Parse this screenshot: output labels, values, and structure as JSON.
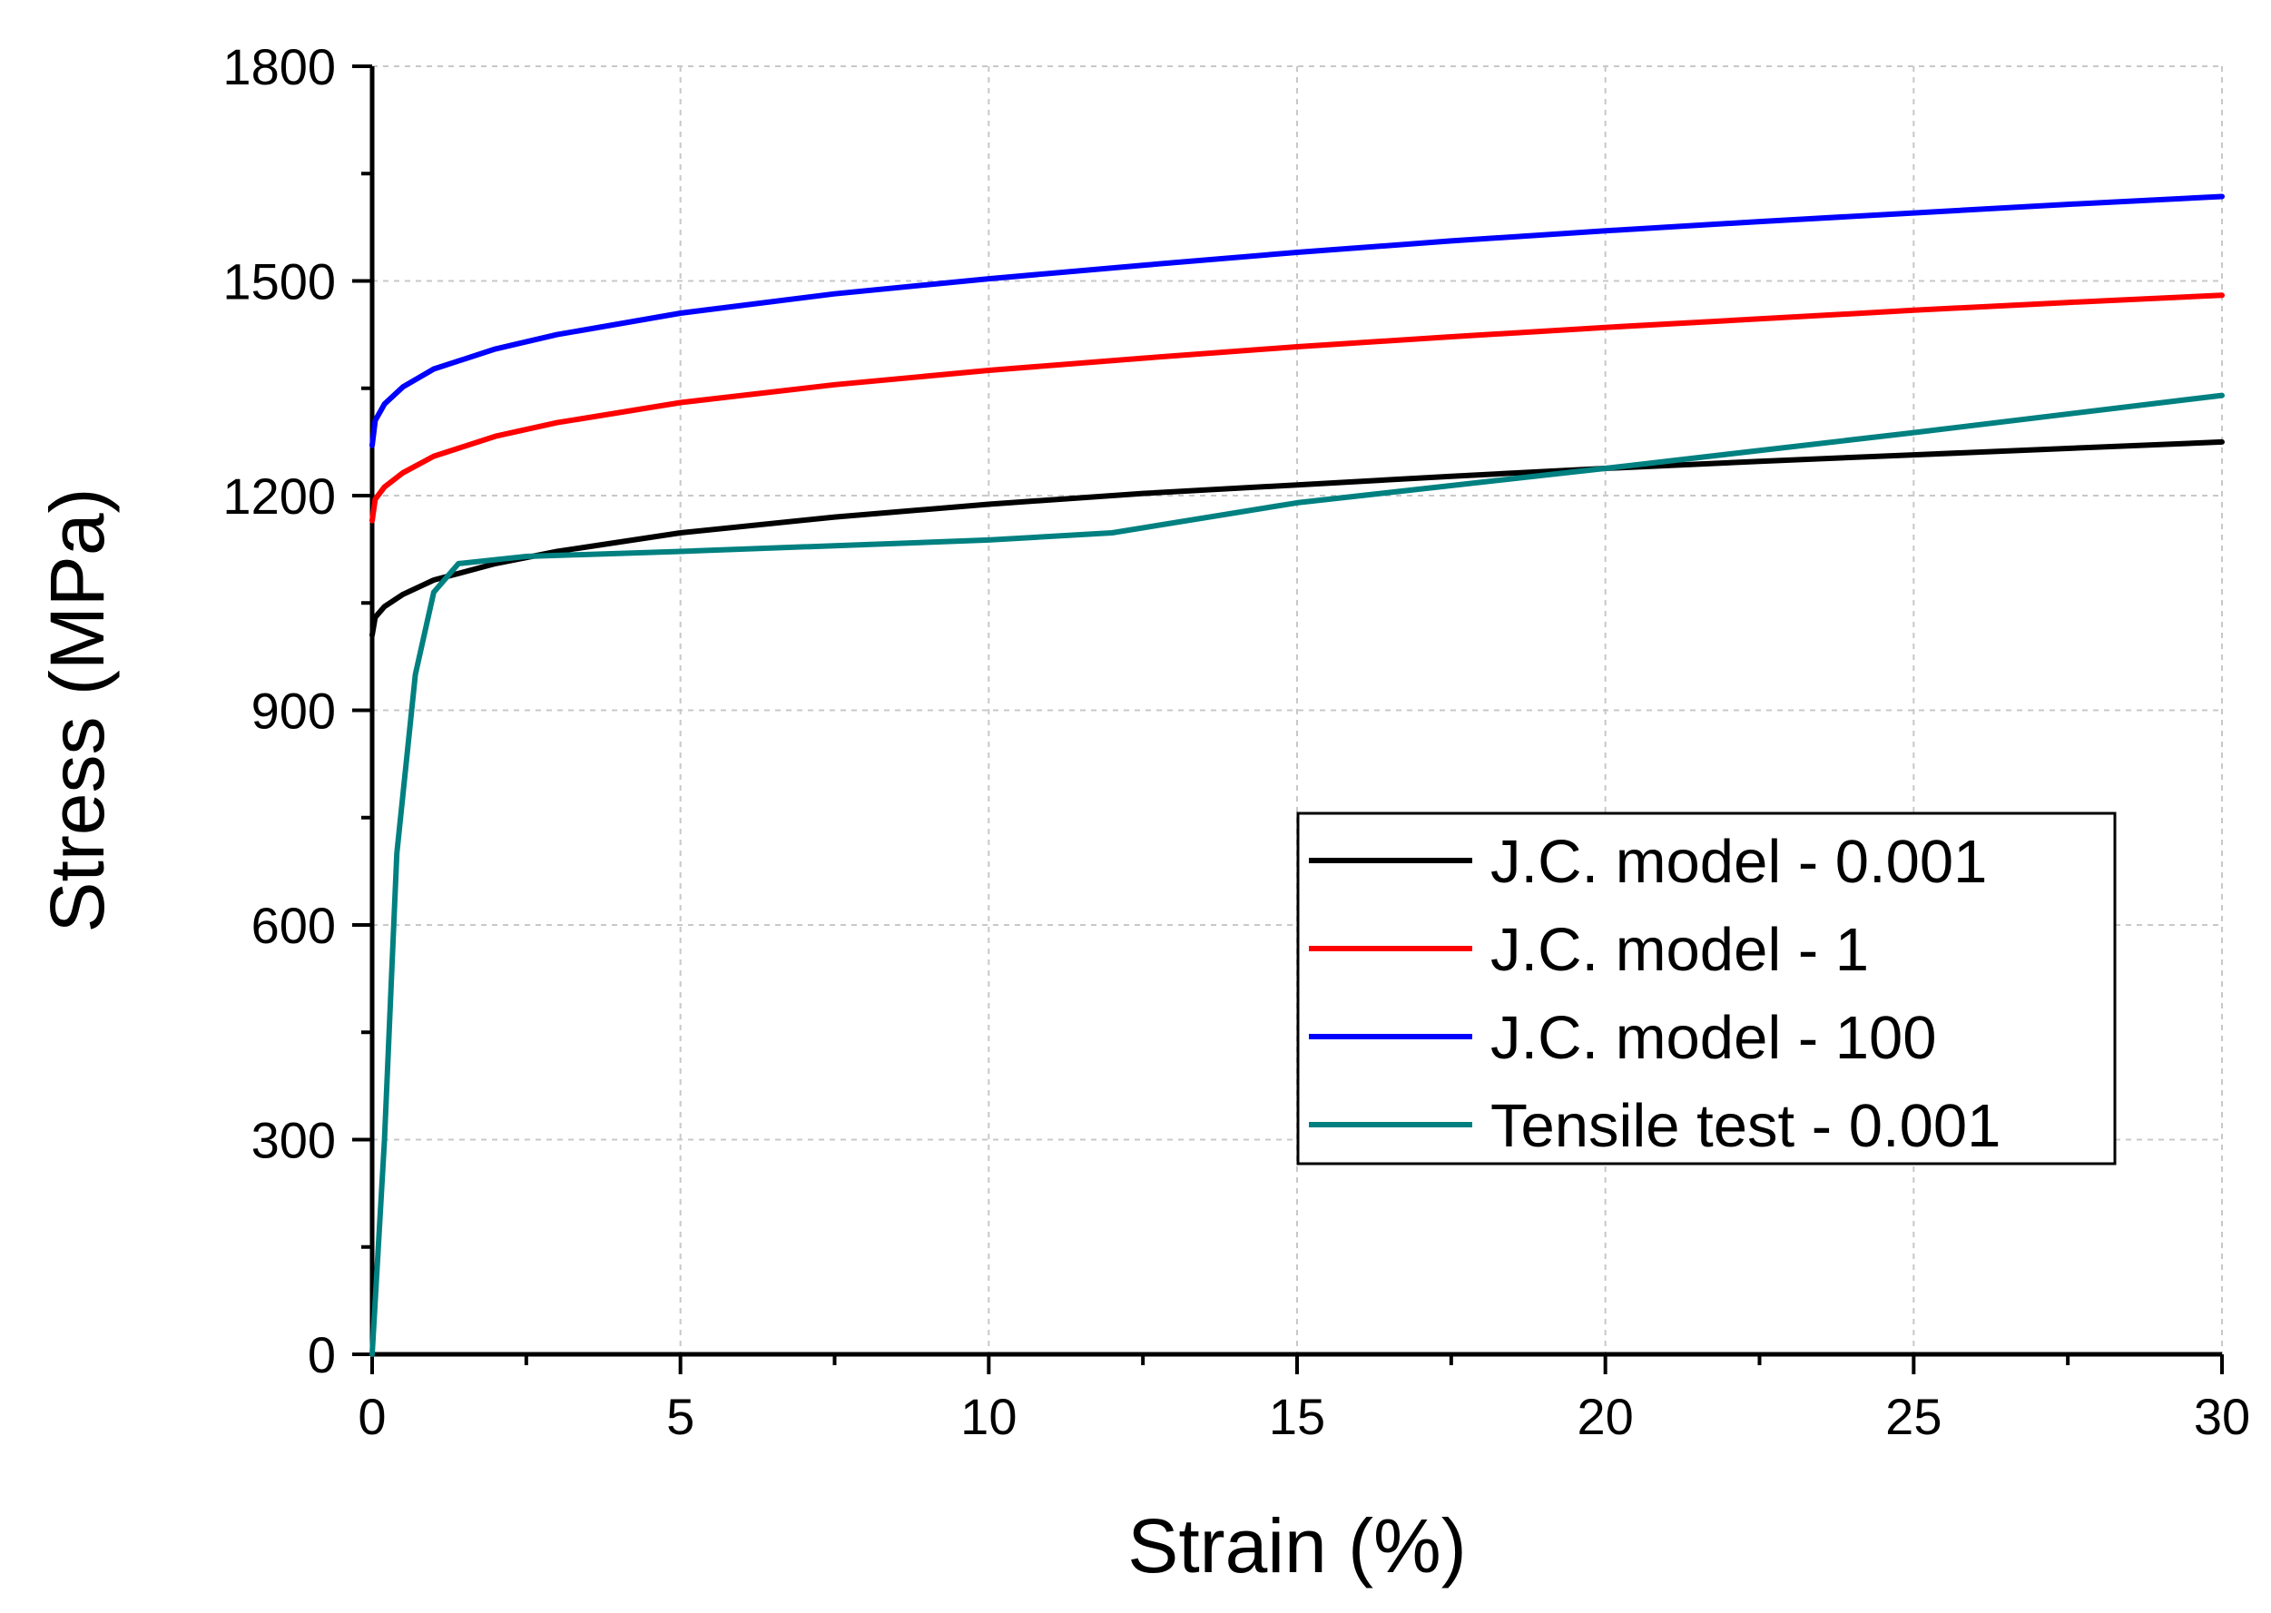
{
  "chart_data": {
    "type": "line",
    "title": "",
    "xlabel": "Strain (%)",
    "ylabel": "Stress (MPa)",
    "xlim": [
      0,
      30
    ],
    "ylim": [
      0,
      1800
    ],
    "xticks": [
      0,
      5,
      10,
      15,
      20,
      25,
      30
    ],
    "yticks": [
      0,
      300,
      600,
      900,
      1200,
      1500,
      1800
    ],
    "grid": true,
    "legend_position": "center-right",
    "series": [
      {
        "name": "J.C. model - 0.001",
        "color": "#000000",
        "x": [
          0,
          0.05,
          0.2,
          0.5,
          1,
          2,
          3,
          5,
          7.5,
          10,
          12.5,
          15,
          17.5,
          20,
          22.5,
          25,
          27.5,
          30
        ],
        "y": [
          1005,
          1030,
          1045,
          1062,
          1082,
          1105,
          1122,
          1148,
          1170,
          1188,
          1203,
          1215,
          1227,
          1238,
          1248,
          1257,
          1266,
          1275
        ]
      },
      {
        "name": "J.C. model - 1",
        "color": "#ff0000",
        "x": [
          0,
          0.05,
          0.2,
          0.5,
          1,
          2,
          3,
          5,
          7.5,
          10,
          12.5,
          15,
          17.5,
          20,
          22.5,
          25,
          27.5,
          30
        ],
        "y": [
          1165,
          1195,
          1212,
          1232,
          1255,
          1283,
          1302,
          1330,
          1355,
          1375,
          1392,
          1408,
          1422,
          1435,
          1447,
          1459,
          1470,
          1480
        ]
      },
      {
        "name": "J.C. model - 100",
        "color": "#0000ff",
        "x": [
          0,
          0.05,
          0.2,
          0.5,
          1,
          2,
          3,
          5,
          7.5,
          10,
          12.5,
          15,
          17.5,
          20,
          22.5,
          25,
          27.5,
          30
        ],
        "y": [
          1270,
          1305,
          1328,
          1352,
          1377,
          1405,
          1425,
          1455,
          1482,
          1503,
          1522,
          1540,
          1556,
          1570,
          1583,
          1595,
          1607,
          1618
        ]
      },
      {
        "name": "Tensile test - 0.001",
        "color": "#008080",
        "x": [
          0,
          0.2,
          0.4,
          0.7,
          1.0,
          1.4,
          2.5,
          5,
          10,
          12,
          15,
          20,
          25,
          30
        ],
        "y": [
          0,
          300,
          700,
          950,
          1065,
          1105,
          1115,
          1122,
          1138,
          1148,
          1190,
          1238,
          1288,
          1340
        ]
      }
    ]
  }
}
